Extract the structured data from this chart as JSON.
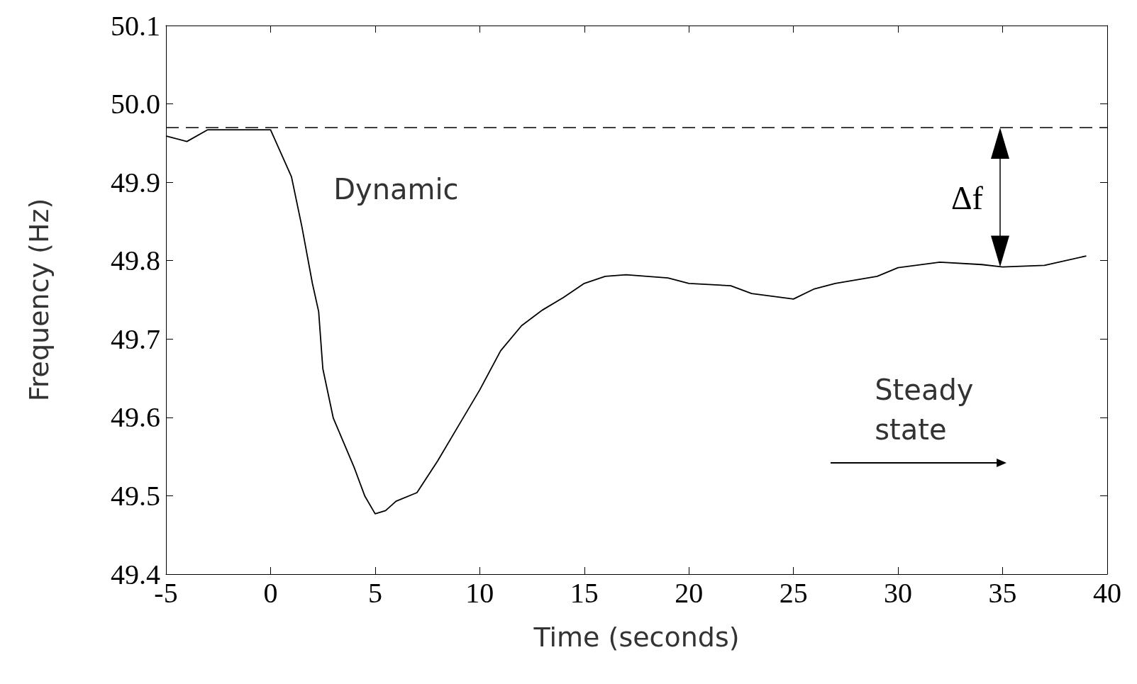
{
  "chart_data": {
    "type": "line",
    "xlabel": "Time (seconds)",
    "ylabel": "Frequency (Hz)",
    "x": [
      -5,
      -4,
      -3,
      0,
      1,
      1.5,
      2,
      2.3,
      2.5,
      3,
      4,
      4.5,
      5,
      5.5,
      6,
      7,
      8,
      9,
      10,
      11,
      12,
      13,
      14,
      15,
      16,
      17,
      19,
      20,
      22,
      23,
      25,
      26,
      27,
      29,
      30,
      32,
      34,
      35,
      37,
      39
    ],
    "series": [
      {
        "color": "#000000",
        "values": [
          49.959,
          49.952,
          49.967,
          49.967,
          49.907,
          49.843,
          49.771,
          49.735,
          49.662,
          49.599,
          49.536,
          49.5,
          49.477,
          49.481,
          49.493,
          49.504,
          49.545,
          49.59,
          49.635,
          49.685,
          49.717,
          49.737,
          49.753,
          49.771,
          49.78,
          49.782,
          49.778,
          49.771,
          49.768,
          49.758,
          49.751,
          49.764,
          49.771,
          49.78,
          49.791,
          49.798,
          49.795,
          49.792,
          49.794,
          49.806
        ]
      }
    ],
    "xlim": [
      -5,
      40
    ],
    "xticks": [
      -5,
      0,
      5,
      10,
      15,
      20,
      25,
      30,
      35,
      40
    ],
    "ylim": [
      49.4,
      50.1
    ],
    "yticks": [
      49.4,
      49.5,
      49.6,
      49.7,
      49.8,
      49.9,
      {
        "value": 50,
        "label": "50.0"
      },
      50.1
    ],
    "ref_lines": [
      {
        "axis": "y",
        "value": 49.97,
        "line_style": "dashed"
      }
    ],
    "annotations": [
      "Dynamic",
      "Δf",
      "Steady\nstate"
    ],
    "grid": false,
    "marker": "none",
    "line_style": "solid"
  }
}
